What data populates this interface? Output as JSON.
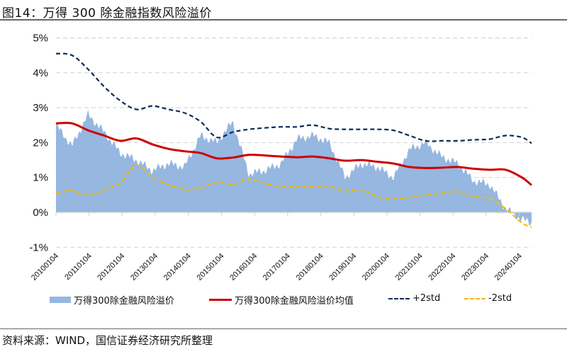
{
  "header": {
    "title": "图14：万得 300 除金融指数风险溢价"
  },
  "footer": {
    "source": "资料来源：WIND，国信证券经济研究所整理"
  },
  "legend": {
    "area": "万得300除金融风险溢价",
    "mean": "万得300除金融风险溢价均值",
    "plus2": "+2std",
    "minus2": "-2std"
  },
  "colors": {
    "area": "#95b7e0",
    "mean": "#cc0000",
    "plus2": "#0b2a5b",
    "minus2": "#f5b800",
    "grid": "#d0d0d0"
  },
  "axis": {
    "y_ticks": [
      "5%",
      "4%",
      "3%",
      "2%",
      "1%",
      "0%",
      "-1%"
    ],
    "x_ticks": [
      "20100104",
      "20110104",
      "20120104",
      "20130104",
      "20140104",
      "20150104",
      "20160104",
      "20170104",
      "20180104",
      "20190104",
      "20200104",
      "20210104",
      "20220104",
      "20230104",
      "20240104"
    ]
  },
  "chart_data": {
    "type": "area",
    "title": "万得 300 除金融指数风险溢价",
    "xlabel": "",
    "ylabel": "",
    "ylim": [
      -1,
      5
    ],
    "grid": true,
    "legend_position": "bottom",
    "categories": [
      "2010",
      "2010.5",
      "2011",
      "2011.5",
      "2012",
      "2012.5",
      "2013",
      "2013.5",
      "2014",
      "2014.5",
      "2015",
      "2015.5",
      "2016",
      "2016.5",
      "2017",
      "2017.5",
      "2018",
      "2018.5",
      "2019",
      "2019.5",
      "2020",
      "2020.5",
      "2021",
      "2021.5",
      "2022",
      "2022.5",
      "2023",
      "2023.5",
      "2024",
      "2024.5",
      "2024.8"
    ],
    "series": [
      {
        "name": "万得300除金融风险溢价",
        "type": "area",
        "values": [
          2.5,
          1.9,
          2.8,
          2.3,
          1.7,
          1.5,
          1.2,
          1.4,
          1.3,
          2.2,
          2.0,
          2.6,
          1.1,
          1.2,
          1.4,
          2.1,
          2.2,
          2.0,
          1.0,
          1.4,
          1.3,
          1.0,
          1.8,
          2.0,
          1.6,
          1.4,
          0.9,
          0.8,
          0.1,
          -0.2,
          -0.3
        ]
      },
      {
        "name": "万得300除金融风险溢价均值",
        "type": "line",
        "values": [
          2.55,
          2.55,
          2.35,
          2.2,
          2.05,
          2.12,
          1.95,
          1.82,
          1.75,
          1.7,
          1.55,
          1.57,
          1.65,
          1.63,
          1.6,
          1.58,
          1.6,
          1.55,
          1.48,
          1.5,
          1.45,
          1.4,
          1.3,
          1.27,
          1.28,
          1.3,
          1.25,
          1.22,
          1.22,
          1.0,
          0.78
        ]
      },
      {
        "name": "+2std",
        "type": "dashed-line",
        "values": [
          4.55,
          4.5,
          4.1,
          3.6,
          3.2,
          2.95,
          3.05,
          2.95,
          2.85,
          2.6,
          2.15,
          2.3,
          2.38,
          2.42,
          2.45,
          2.45,
          2.5,
          2.4,
          2.38,
          2.38,
          2.38,
          2.35,
          2.2,
          2.05,
          2.05,
          2.05,
          2.08,
          2.1,
          2.2,
          2.15,
          1.98
        ]
      },
      {
        "name": "-2std",
        "type": "dashed-line",
        "values": [
          0.55,
          0.62,
          0.48,
          0.65,
          0.85,
          1.35,
          1.0,
          0.8,
          0.65,
          0.7,
          0.88,
          0.8,
          0.95,
          0.82,
          0.75,
          0.75,
          0.75,
          0.75,
          0.6,
          0.65,
          0.45,
          0.38,
          0.42,
          0.5,
          0.55,
          0.6,
          0.45,
          0.4,
          0.1,
          -0.3,
          -0.42
        ]
      }
    ]
  }
}
